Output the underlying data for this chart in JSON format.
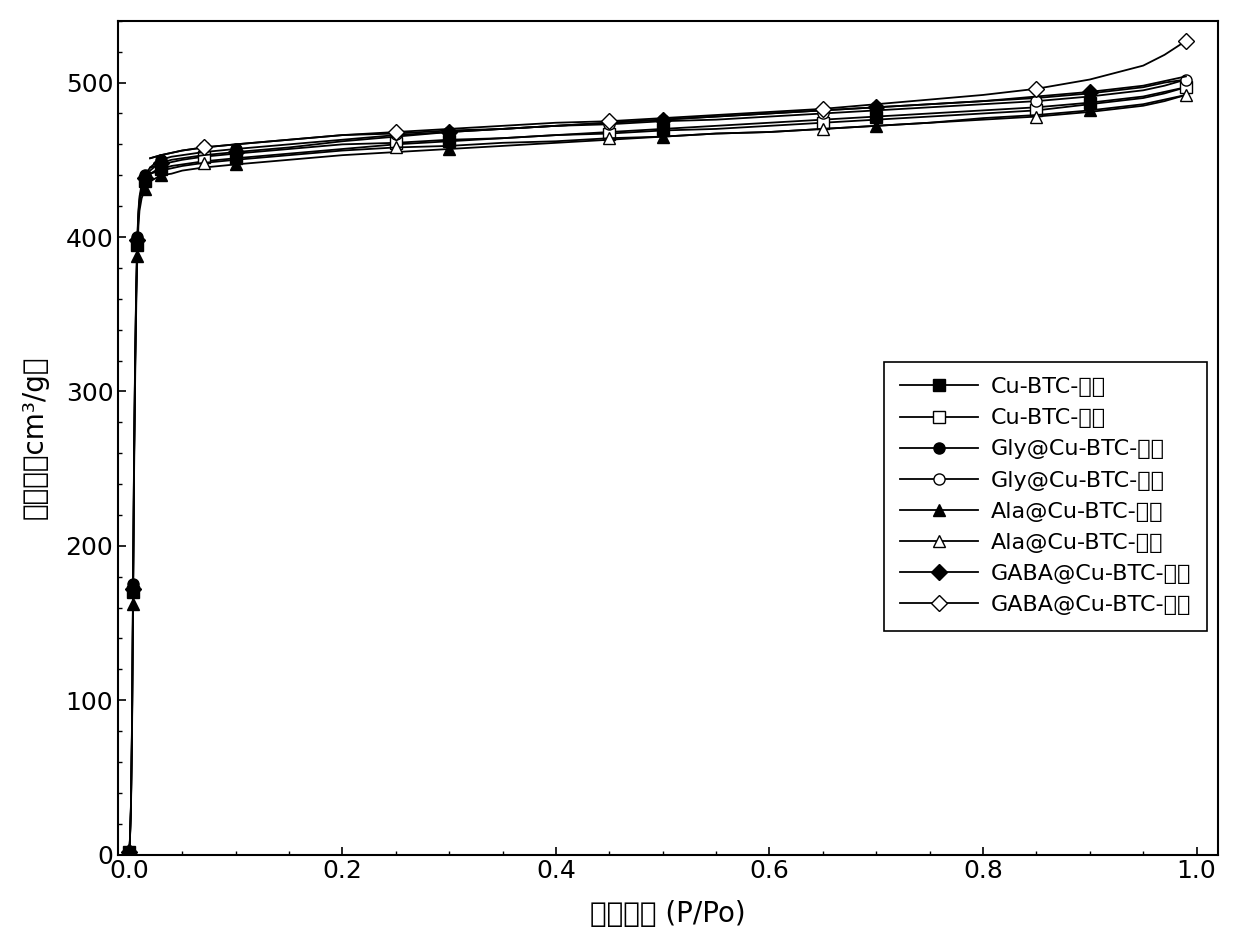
{
  "title": "",
  "xlabel": "相对压力 (P/Po)",
  "ylabel": "吸附量（cm³/g）",
  "xlim": [
    -0.01,
    1.02
  ],
  "ylim": [
    0,
    540
  ],
  "yticks": [
    0,
    100,
    200,
    300,
    400,
    500
  ],
  "xticks": [
    0.0,
    0.2,
    0.4,
    0.6,
    0.8,
    1.0
  ],
  "background_color": "#ffffff",
  "series": [
    {
      "label": "Cu-BTC-吸附",
      "marker": "s",
      "fillstyle": "full",
      "color": "#000000",
      "x": [
        0.0005,
        0.001,
        0.002,
        0.003,
        0.004,
        0.005,
        0.006,
        0.007,
        0.008,
        0.009,
        0.01,
        0.012,
        0.015,
        0.018,
        0.02,
        0.025,
        0.03,
        0.04,
        0.05,
        0.07,
        0.1,
        0.15,
        0.2,
        0.25,
        0.3,
        0.35,
        0.4,
        0.45,
        0.5,
        0.55,
        0.6,
        0.65,
        0.7,
        0.75,
        0.8,
        0.85,
        0.9,
        0.95,
        0.97,
        0.99
      ],
      "y": [
        2,
        8,
        30,
        80,
        170,
        260,
        320,
        365,
        395,
        413,
        422,
        430,
        436,
        439,
        441,
        443,
        444,
        446,
        447,
        449,
        451,
        454,
        457,
        460,
        462,
        464,
        466,
        468,
        470,
        472,
        474,
        476,
        478,
        480,
        482,
        484,
        487,
        491,
        494,
        497
      ]
    },
    {
      "label": "Cu-BTC-脱附",
      "marker": "s",
      "fillstyle": "none",
      "color": "#000000",
      "x": [
        0.99,
        0.97,
        0.95,
        0.9,
        0.85,
        0.8,
        0.75,
        0.7,
        0.65,
        0.6,
        0.55,
        0.5,
        0.45,
        0.4,
        0.35,
        0.3,
        0.25,
        0.2,
        0.15,
        0.1,
        0.07,
        0.05,
        0.03,
        0.02
      ],
      "y": [
        497,
        493,
        490,
        486,
        482,
        480,
        478,
        476,
        474,
        472,
        470,
        469,
        467,
        466,
        464,
        463,
        461,
        460,
        457,
        454,
        452,
        450,
        447,
        445
      ]
    },
    {
      "label": "Gly@Cu-BTC-吸附",
      "marker": "o",
      "fillstyle": "full",
      "color": "#000000",
      "x": [
        0.0005,
        0.001,
        0.002,
        0.003,
        0.004,
        0.005,
        0.006,
        0.007,
        0.008,
        0.009,
        0.01,
        0.012,
        0.015,
        0.018,
        0.02,
        0.025,
        0.03,
        0.04,
        0.05,
        0.07,
        0.1,
        0.15,
        0.2,
        0.25,
        0.3,
        0.35,
        0.4,
        0.45,
        0.5,
        0.55,
        0.6,
        0.65,
        0.7,
        0.75,
        0.8,
        0.85,
        0.9,
        0.95,
        0.97,
        0.99
      ],
      "y": [
        2,
        9,
        32,
        85,
        175,
        265,
        325,
        370,
        400,
        417,
        426,
        434,
        440,
        443,
        445,
        448,
        450,
        452,
        453,
        455,
        457,
        460,
        463,
        466,
        468,
        470,
        472,
        474,
        476,
        478,
        480,
        482,
        484,
        486,
        488,
        490,
        493,
        497,
        500,
        502
      ]
    },
    {
      "label": "Gly@Cu-BTC-脱附",
      "marker": "o",
      "fillstyle": "none",
      "color": "#000000",
      "x": [
        0.99,
        0.97,
        0.95,
        0.9,
        0.85,
        0.8,
        0.75,
        0.7,
        0.65,
        0.6,
        0.55,
        0.5,
        0.45,
        0.4,
        0.35,
        0.3,
        0.25,
        0.2,
        0.15,
        0.1,
        0.07,
        0.05,
        0.03,
        0.02
      ],
      "y": [
        502,
        498,
        495,
        491,
        488,
        486,
        484,
        482,
        480,
        478,
        476,
        475,
        473,
        472,
        470,
        469,
        467,
        466,
        463,
        460,
        458,
        456,
        453,
        451
      ]
    },
    {
      "label": "Ala@Cu-BTC-吸附",
      "marker": "^",
      "fillstyle": "full",
      "color": "#000000",
      "x": [
        0.0005,
        0.001,
        0.002,
        0.003,
        0.004,
        0.005,
        0.006,
        0.007,
        0.008,
        0.009,
        0.01,
        0.012,
        0.015,
        0.018,
        0.02,
        0.025,
        0.03,
        0.04,
        0.05,
        0.07,
        0.1,
        0.15,
        0.2,
        0.25,
        0.3,
        0.35,
        0.4,
        0.45,
        0.5,
        0.55,
        0.6,
        0.65,
        0.7,
        0.75,
        0.8,
        0.85,
        0.9,
        0.95,
        0.97,
        0.99
      ],
      "y": [
        2,
        8,
        28,
        75,
        162,
        250,
        310,
        356,
        388,
        407,
        417,
        425,
        431,
        434,
        436,
        438,
        440,
        441,
        443,
        445,
        447,
        450,
        453,
        455,
        457,
        459,
        461,
        463,
        465,
        467,
        468,
        470,
        472,
        474,
        477,
        479,
        482,
        486,
        489,
        492
      ]
    },
    {
      "label": "Ala@Cu-BTC-脱附",
      "marker": "^",
      "fillstyle": "none",
      "color": "#000000",
      "x": [
        0.99,
        0.97,
        0.95,
        0.9,
        0.85,
        0.8,
        0.75,
        0.7,
        0.65,
        0.6,
        0.55,
        0.5,
        0.45,
        0.4,
        0.35,
        0.3,
        0.25,
        0.2,
        0.15,
        0.1,
        0.07,
        0.05,
        0.03,
        0.02
      ],
      "y": [
        492,
        488,
        485,
        481,
        478,
        476,
        474,
        472,
        470,
        468,
        467,
        465,
        464,
        462,
        461,
        459,
        458,
        456,
        453,
        450,
        448,
        446,
        443,
        441
      ]
    },
    {
      "label": "GABA@Cu-BTC-吸附",
      "marker": "D",
      "fillstyle": "full",
      "color": "#000000",
      "x": [
        0.0005,
        0.001,
        0.002,
        0.003,
        0.004,
        0.005,
        0.006,
        0.007,
        0.008,
        0.009,
        0.01,
        0.012,
        0.015,
        0.018,
        0.02,
        0.025,
        0.03,
        0.04,
        0.05,
        0.07,
        0.1,
        0.15,
        0.2,
        0.25,
        0.3,
        0.35,
        0.4,
        0.45,
        0.5,
        0.55,
        0.6,
        0.65,
        0.7,
        0.75,
        0.8,
        0.85,
        0.9,
        0.95,
        0.97,
        0.99
      ],
      "y": [
        2,
        9,
        31,
        82,
        172,
        262,
        322,
        368,
        398,
        415,
        424,
        432,
        438,
        441,
        443,
        446,
        448,
        450,
        451,
        453,
        455,
        458,
        462,
        465,
        468,
        470,
        472,
        474,
        476,
        478,
        480,
        482,
        484,
        486,
        488,
        491,
        494,
        498,
        501,
        504
      ]
    },
    {
      "label": "GABA@Cu-BTC-脱附",
      "marker": "D",
      "fillstyle": "none",
      "color": "#000000",
      "x": [
        0.99,
        0.97,
        0.95,
        0.9,
        0.85,
        0.8,
        0.75,
        0.7,
        0.65,
        0.6,
        0.55,
        0.5,
        0.45,
        0.4,
        0.35,
        0.3,
        0.25,
        0.2,
        0.15,
        0.1,
        0.07,
        0.05,
        0.03,
        0.02
      ],
      "y": [
        527,
        518,
        511,
        502,
        496,
        492,
        489,
        486,
        483,
        481,
        479,
        477,
        475,
        474,
        472,
        470,
        468,
        466,
        463,
        460,
        458,
        456,
        453,
        451
      ]
    }
  ],
  "font_size": 20,
  "tick_font_size": 18,
  "legend_font_size": 16
}
